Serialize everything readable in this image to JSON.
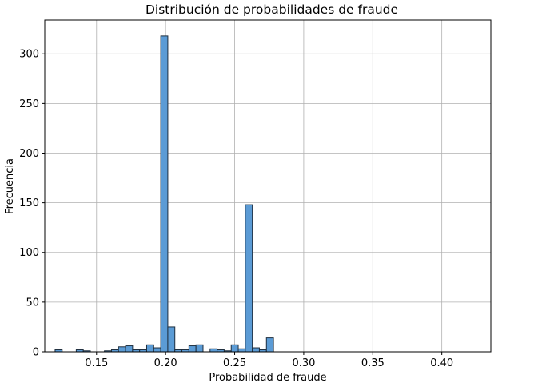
{
  "chart_data": {
    "type": "bar",
    "title": "Distribución de probabilidades de fraude",
    "xlabel": "Probabilidad de fraude",
    "ylabel": "Frecuencia",
    "xlim": [
      0.1125,
      0.4355
    ],
    "ylim": [
      0,
      334
    ],
    "x_ticks": [
      0.15,
      0.2,
      0.25,
      0.3,
      0.35,
      0.4
    ],
    "x_tick_labels": [
      "0.15",
      "0.20",
      "0.25",
      "0.30",
      "0.35",
      "0.40"
    ],
    "y_ticks": [
      0,
      50,
      100,
      150,
      200,
      250,
      300
    ],
    "y_tick_labels": [
      "0",
      "50",
      "100",
      "150",
      "200",
      "250",
      "300"
    ],
    "grid": true,
    "bar_color": "#5b9bd5",
    "bar_edge_color": "#1f2f3f",
    "bins": [
      {
        "x0": 0.12,
        "x1": 0.1251,
        "value": 2
      },
      {
        "x0": 0.1251,
        "x1": 0.1302,
        "value": 0
      },
      {
        "x0": 0.1302,
        "x1": 0.1353,
        "value": 0
      },
      {
        "x0": 0.1353,
        "x1": 0.1404,
        "value": 2
      },
      {
        "x0": 0.1404,
        "x1": 0.1455,
        "value": 1
      },
      {
        "x0": 0.1455,
        "x1": 0.1506,
        "value": 0
      },
      {
        "x0": 0.1506,
        "x1": 0.1557,
        "value": 0
      },
      {
        "x0": 0.1557,
        "x1": 0.1608,
        "value": 1
      },
      {
        "x0": 0.1608,
        "x1": 0.1659,
        "value": 2
      },
      {
        "x0": 0.1659,
        "x1": 0.171,
        "value": 5
      },
      {
        "x0": 0.171,
        "x1": 0.1761,
        "value": 6
      },
      {
        "x0": 0.1761,
        "x1": 0.1812,
        "value": 2
      },
      {
        "x0": 0.1812,
        "x1": 0.1863,
        "value": 2
      },
      {
        "x0": 0.1863,
        "x1": 0.1914,
        "value": 7
      },
      {
        "x0": 0.1914,
        "x1": 0.1965,
        "value": 4
      },
      {
        "x0": 0.1965,
        "x1": 0.2016,
        "value": 318
      },
      {
        "x0": 0.2016,
        "x1": 0.2067,
        "value": 25
      },
      {
        "x0": 0.2067,
        "x1": 0.2118,
        "value": 2
      },
      {
        "x0": 0.2118,
        "x1": 0.2169,
        "value": 2
      },
      {
        "x0": 0.2169,
        "x1": 0.222,
        "value": 6
      },
      {
        "x0": 0.222,
        "x1": 0.2271,
        "value": 7
      },
      {
        "x0": 0.2271,
        "x1": 0.2322,
        "value": 0
      },
      {
        "x0": 0.2322,
        "x1": 0.2373,
        "value": 3
      },
      {
        "x0": 0.2373,
        "x1": 0.2424,
        "value": 2
      },
      {
        "x0": 0.2424,
        "x1": 0.2475,
        "value": 1
      },
      {
        "x0": 0.2475,
        "x1": 0.2526,
        "value": 7
      },
      {
        "x0": 0.2526,
        "x1": 0.2577,
        "value": 3
      },
      {
        "x0": 0.2577,
        "x1": 0.2628,
        "value": 148
      },
      {
        "x0": 0.2628,
        "x1": 0.2679,
        "value": 4
      },
      {
        "x0": 0.2679,
        "x1": 0.273,
        "value": 2
      },
      {
        "x0": 0.273,
        "x1": 0.2781,
        "value": 14
      }
    ]
  }
}
